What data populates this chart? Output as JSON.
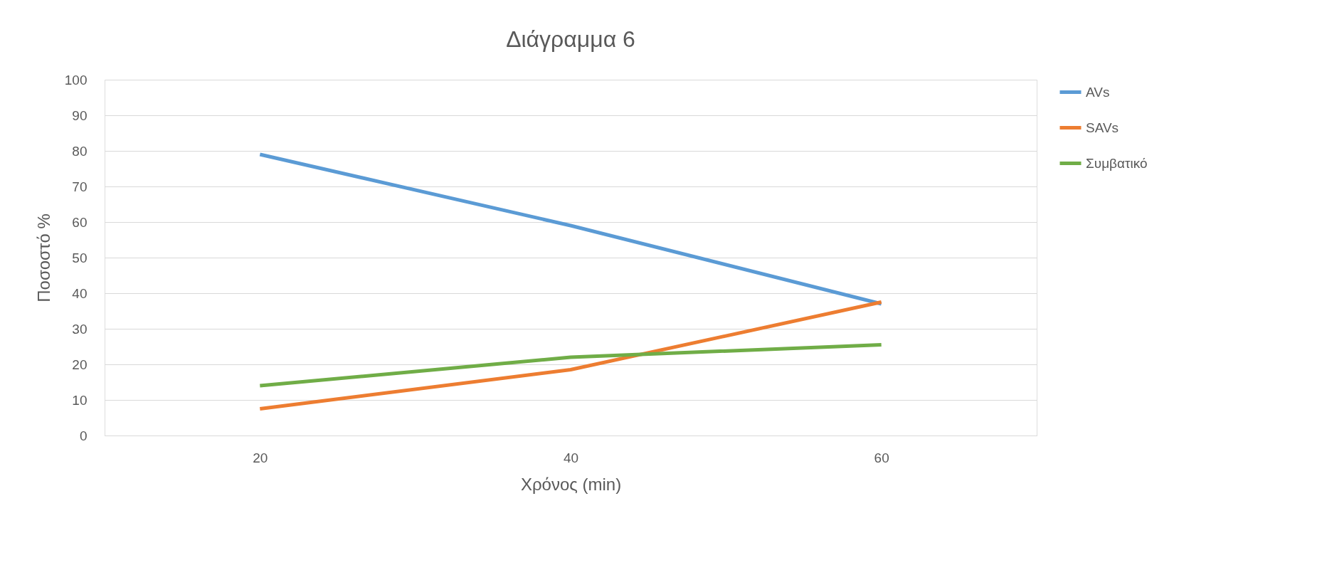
{
  "chart_data": {
    "type": "line",
    "title": "Διάγραμμα 6",
    "xlabel": "Χρόνος (min)",
    "ylabel": "Ποσοστό %",
    "categories": [
      "20",
      "40",
      "60"
    ],
    "series": [
      {
        "name": "AVs",
        "color": "#5b9bd5",
        "values": [
          79,
          59,
          37
        ]
      },
      {
        "name": "SAVs",
        "color": "#ed7d31",
        "values": [
          7.5,
          18.5,
          37.5
        ]
      },
      {
        "name": "Συμβατικό",
        "color": "#70ad47",
        "values": [
          14,
          22,
          25.5
        ]
      }
    ],
    "ylim": [
      0,
      100
    ],
    "yticks": [
      0,
      10,
      20,
      30,
      40,
      50,
      60,
      70,
      80,
      90,
      100
    ],
    "grid": "y",
    "legend": "right",
    "marker": "none",
    "line_style": "solid"
  }
}
